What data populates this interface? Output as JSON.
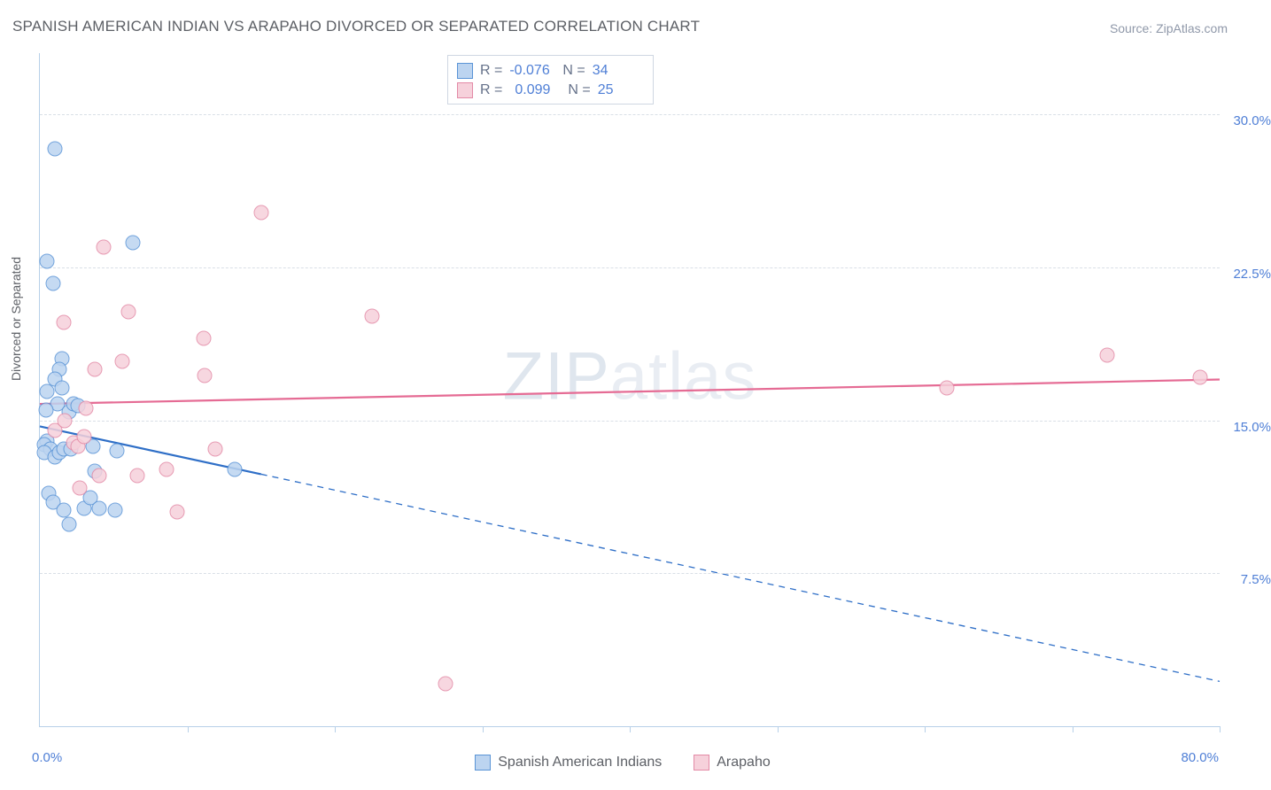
{
  "title": "SPANISH AMERICAN INDIAN VS ARAPAHO DIVORCED OR SEPARATED CORRELATION CHART",
  "source_label": "Source: ZipAtlas.com",
  "watermark": "ZIPatlas",
  "yaxis_title": "Divorced or Separated",
  "x_origin_label": "0.0%",
  "x_max_label": "80.0%",
  "chart": {
    "type": "scatter",
    "background_color": "#ffffff",
    "axis_color": "#b7d0e8",
    "grid_color": "#d9dfe6",
    "grid_dash": true,
    "label_color": "#4f7fd6",
    "label_fontsize": 15,
    "xlim": [
      0,
      80
    ],
    "ylim": [
      0,
      33
    ],
    "ygrid": [
      7.5,
      15.0,
      22.5,
      30.0
    ],
    "ylabels": [
      "7.5%",
      "15.0%",
      "22.5%",
      "30.0%"
    ],
    "xticks": [
      10,
      20,
      30,
      40,
      50,
      60,
      70,
      80
    ],
    "marker_radius": 8.5,
    "marker_border_width": 1.5,
    "series": [
      {
        "name": "Spanish American Indians",
        "fill": "#bcd4f0",
        "stroke": "#5a94d6",
        "line_color": "#2f6fc7",
        "line_solid_to_x": 15,
        "line_width": 2.2,
        "trend": {
          "y_at_x0": 14.7,
          "y_at_xmax": 2.2
        },
        "R": "-0.076",
        "N": "34",
        "points": [
          [
            0.5,
            22.8
          ],
          [
            0.9,
            21.7
          ],
          [
            1.0,
            28.3
          ],
          [
            1.5,
            18.0
          ],
          [
            1.3,
            17.5
          ],
          [
            1.2,
            15.8
          ],
          [
            0.4,
            15.5
          ],
          [
            0.5,
            14.0
          ],
          [
            0.3,
            13.8
          ],
          [
            0.7,
            13.6
          ],
          [
            0.3,
            13.4
          ],
          [
            1.0,
            13.2
          ],
          [
            1.3,
            13.4
          ],
          [
            0.6,
            11.4
          ],
          [
            0.9,
            11.0
          ],
          [
            1.6,
            10.6
          ],
          [
            1.6,
            13.6
          ],
          [
            2.1,
            13.6
          ],
          [
            2.0,
            15.4
          ],
          [
            2.3,
            15.8
          ],
          [
            2.6,
            15.7
          ],
          [
            3.0,
            10.7
          ],
          [
            3.4,
            11.2
          ],
          [
            3.6,
            13.7
          ],
          [
            4.0,
            10.7
          ],
          [
            5.1,
            10.6
          ],
          [
            5.2,
            13.5
          ],
          [
            3.7,
            12.5
          ],
          [
            6.3,
            23.7
          ],
          [
            2.0,
            9.9
          ],
          [
            13.2,
            12.6
          ],
          [
            1.0,
            17.0
          ],
          [
            0.5,
            16.4
          ],
          [
            1.5,
            16.6
          ]
        ]
      },
      {
        "name": "Arapaho",
        "fill": "#f6d1db",
        "stroke": "#e38aa6",
        "line_color": "#e56b94",
        "line_solid_to_x": 80,
        "line_width": 2.2,
        "trend": {
          "y_at_x0": 15.8,
          "y_at_xmax": 17.0
        },
        "R": "0.099",
        "N": "25",
        "points": [
          [
            1.6,
            19.8
          ],
          [
            2.3,
            13.9
          ],
          [
            2.6,
            13.7
          ],
          [
            2.7,
            11.7
          ],
          [
            3.0,
            14.2
          ],
          [
            3.7,
            17.5
          ],
          [
            4.0,
            12.3
          ],
          [
            4.3,
            23.5
          ],
          [
            5.6,
            17.9
          ],
          [
            6.0,
            20.3
          ],
          [
            6.6,
            12.3
          ],
          [
            8.6,
            12.6
          ],
          [
            9.3,
            10.5
          ],
          [
            11.2,
            17.2
          ],
          [
            11.1,
            19.0
          ],
          [
            11.9,
            13.6
          ],
          [
            15.0,
            25.2
          ],
          [
            22.5,
            20.1
          ],
          [
            27.5,
            2.1
          ],
          [
            61.5,
            16.6
          ],
          [
            72.4,
            18.2
          ],
          [
            78.7,
            17.1
          ],
          [
            1.0,
            14.5
          ],
          [
            3.1,
            15.6
          ],
          [
            1.7,
            15.0
          ]
        ]
      }
    ]
  },
  "bottom_legend": [
    {
      "label": "Spanish American Indians",
      "fill": "#bcd4f0",
      "stroke": "#5a94d6"
    },
    {
      "label": "Arapaho",
      "fill": "#f6d1db",
      "stroke": "#e38aa6"
    }
  ]
}
